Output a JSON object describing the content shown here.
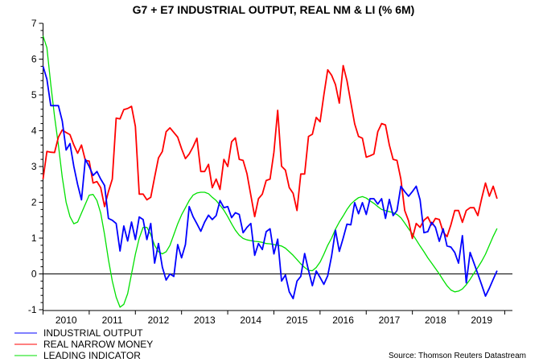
{
  "chart_data": {
    "type": "line",
    "title": "G7 + E7 INDUSTRIAL OUTPUT, REAL NM & LI (% 6M)",
    "xlabel": "",
    "ylabel": "",
    "ylim": [
      -1,
      7
    ],
    "yticks": [
      -1,
      0,
      1,
      2,
      3,
      4,
      5,
      6,
      7
    ],
    "xlim": [
      "2010-01",
      "2020-03"
    ],
    "xtick_labels": [
      "2010",
      "2011",
      "2012",
      "2013",
      "2014",
      "2015",
      "2016",
      "2017",
      "2018",
      "2019"
    ],
    "grid": false,
    "zero_line": true,
    "legend_position": "bottom-left",
    "source": "Source: Thomson Reuters Datastream",
    "x": [
      "2010-01",
      "2010-02",
      "2010-03",
      "2010-04",
      "2010-05",
      "2010-06",
      "2010-07",
      "2010-08",
      "2010-09",
      "2010-10",
      "2010-11",
      "2010-12",
      "2011-01",
      "2011-02",
      "2011-03",
      "2011-04",
      "2011-05",
      "2011-06",
      "2011-07",
      "2011-08",
      "2011-09",
      "2011-10",
      "2011-11",
      "2011-12",
      "2012-01",
      "2012-02",
      "2012-03",
      "2012-04",
      "2012-05",
      "2012-06",
      "2012-07",
      "2012-08",
      "2012-09",
      "2012-10",
      "2012-11",
      "2012-12",
      "2013-01",
      "2013-02",
      "2013-03",
      "2013-04",
      "2013-05",
      "2013-06",
      "2013-07",
      "2013-08",
      "2013-09",
      "2013-10",
      "2013-11",
      "2013-12",
      "2014-01",
      "2014-02",
      "2014-03",
      "2014-04",
      "2014-05",
      "2014-06",
      "2014-07",
      "2014-08",
      "2014-09",
      "2014-10",
      "2014-11",
      "2014-12",
      "2015-01",
      "2015-02",
      "2015-03",
      "2015-04",
      "2015-05",
      "2015-06",
      "2015-07",
      "2015-08",
      "2015-09",
      "2015-10",
      "2015-11",
      "2015-12",
      "2016-01",
      "2016-02",
      "2016-03",
      "2016-04",
      "2016-05",
      "2016-06",
      "2016-07",
      "2016-08",
      "2016-09",
      "2016-10",
      "2016-11",
      "2016-12",
      "2017-01",
      "2017-02",
      "2017-03",
      "2017-04",
      "2017-05",
      "2017-06",
      "2017-07",
      "2017-08",
      "2017-09",
      "2017-10",
      "2017-11",
      "2017-12",
      "2018-01",
      "2018-02",
      "2018-03",
      "2018-04",
      "2018-05",
      "2018-06",
      "2018-07",
      "2018-08",
      "2018-09",
      "2018-10",
      "2018-11",
      "2018-12",
      "2019-01",
      "2019-02",
      "2019-03",
      "2019-04",
      "2019-05",
      "2019-06",
      "2019-07",
      "2019-08",
      "2019-09",
      "2019-10",
      "2019-11"
    ],
    "series": [
      {
        "name": "INDUSTRIAL OUTPUT",
        "color": "#0000ff",
        "values": [
          5.8,
          5.44,
          4.7,
          4.7,
          4.7,
          4.27,
          3.46,
          3.64,
          3.0,
          2.5,
          2.07,
          3.2,
          3.0,
          2.75,
          2.86,
          2.65,
          2.47,
          1.55,
          1.5,
          1.41,
          0.64,
          1.34,
          0.92,
          1.45,
          0.96,
          1.59,
          1.52,
          0.96,
          1.41,
          0.3,
          0.85,
          0.19,
          -0.17,
          0,
          -0.07,
          0.82,
          0.45,
          0.82,
          1.88,
          1.6,
          1.4,
          1.19,
          1.45,
          1.64,
          1.52,
          1.63,
          2.05,
          1.85,
          1.88,
          1.57,
          1.71,
          1.66,
          1.15,
          1.3,
          1.41,
          0.52,
          0.85,
          0.68,
          1.18,
          1.26,
          0.56,
          0.97,
          -0.2,
          -0.03,
          -0.5,
          -0.69,
          -0.2,
          -0.07,
          0.57,
          0.1,
          -0.33,
          0.08,
          -0.1,
          -0.29,
          -0.05,
          0.5,
          1.22,
          0.63,
          1.0,
          1.39,
          1.37,
          1.99,
          1.68,
          1.99,
          1.66,
          2.1,
          2.1,
          1.95,
          2.1,
          1.55,
          2.08,
          1.63,
          1.77,
          2.45,
          2.3,
          2.17,
          2.3,
          2.45,
          2.07,
          1.15,
          1.18,
          1.44,
          1.3,
          0.91,
          1.26,
          0.78,
          0.75,
          0.6,
          0.3,
          1.07,
          -0.25,
          0.6,
          0.3,
          0,
          -0.3,
          -0.62,
          -0.4,
          -0.15,
          0.09
        ]
      },
      {
        "name": "REAL NARROW MONEY",
        "color": "#ff0000",
        "values": [
          2.65,
          3.42,
          3.4,
          3.39,
          3.82,
          4.02,
          3.95,
          3.89,
          3.6,
          3.37,
          3.6,
          3.17,
          3.15,
          2.54,
          2.58,
          2.41,
          1.88,
          2.3,
          2.65,
          4.35,
          4.33,
          4.59,
          4.62,
          4.68,
          4.12,
          2.23,
          2.23,
          2.07,
          2.14,
          2.7,
          3.24,
          3.42,
          3.97,
          4.08,
          3.95,
          3.82,
          3.5,
          3.22,
          3.35,
          3.55,
          3.79,
          2.86,
          2.86,
          3.06,
          2.41,
          2.65,
          2.36,
          3.2,
          3.0,
          3.69,
          3.8,
          3.2,
          3.17,
          2.8,
          2.2,
          1.6,
          2.1,
          2.23,
          2.61,
          2.65,
          3.4,
          4.57,
          3.01,
          2.9,
          2.41,
          2.25,
          1.77,
          2.79,
          2.79,
          3.84,
          3.9,
          4.37,
          4.25,
          5.0,
          5.7,
          5.55,
          5.29,
          4.77,
          5.82,
          5.4,
          4.79,
          4.19,
          3.84,
          3.79,
          3.26,
          3.3,
          3.35,
          3.97,
          4.2,
          4.16,
          3.6,
          3.2,
          3.17,
          2.65,
          1.77,
          1.48,
          0.99,
          1.41,
          1.3,
          1.5,
          1.59,
          1.37,
          1.55,
          1.52,
          1.17,
          1.04,
          1.37,
          1.77,
          1.77,
          1.44,
          1.77,
          1.85,
          1.85,
          1.63,
          2.1,
          2.54,
          2.17,
          2.45,
          2.1
        ]
      },
      {
        "name": "LEADING INDICATOR",
        "color": "#00e000",
        "values": [
          6.65,
          6.32,
          5.3,
          4.4,
          3.6,
          2.7,
          2.0,
          1.6,
          1.4,
          1.45,
          1.7,
          1.95,
          2.2,
          2.22,
          2.05,
          1.7,
          1.1,
          0.4,
          -0.2,
          -0.65,
          -0.93,
          -0.85,
          -0.55,
          0,
          0.55,
          1.0,
          1.3,
          1.3,
          1.1,
          0.8,
          0.62,
          0.56,
          0.62,
          0.8,
          1.1,
          1.4,
          1.65,
          1.85,
          2.05,
          2.2,
          2.26,
          2.28,
          2.28,
          2.24,
          2.14,
          2.05,
          1.92,
          1.78,
          1.6,
          1.4,
          1.22,
          1.08,
          0.99,
          0.95,
          0.93,
          0.91,
          0.9,
          0.88,
          0.85,
          0.84,
          0.82,
          0.8,
          0.78,
          0.72,
          0.62,
          0.52,
          0.4,
          0.28,
          0.18,
          0.1,
          0.09,
          0.18,
          0.33,
          0.55,
          0.8,
          1.0,
          1.25,
          1.45,
          1.62,
          1.8,
          1.95,
          2.05,
          2.13,
          2.16,
          2.12,
          2.04,
          1.97,
          1.88,
          1.8,
          1.77,
          1.74,
          1.71,
          1.66,
          1.57,
          1.42,
          1.26,
          1.12,
          0.95,
          0.78,
          0.62,
          0.45,
          0.3,
          0.15,
          0,
          -0.17,
          -0.33,
          -0.45,
          -0.5,
          -0.48,
          -0.42,
          -0.3,
          -0.15,
          0.02,
          0.18,
          0.35,
          0.55,
          0.8,
          1.05,
          1.27
        ]
      }
    ]
  }
}
